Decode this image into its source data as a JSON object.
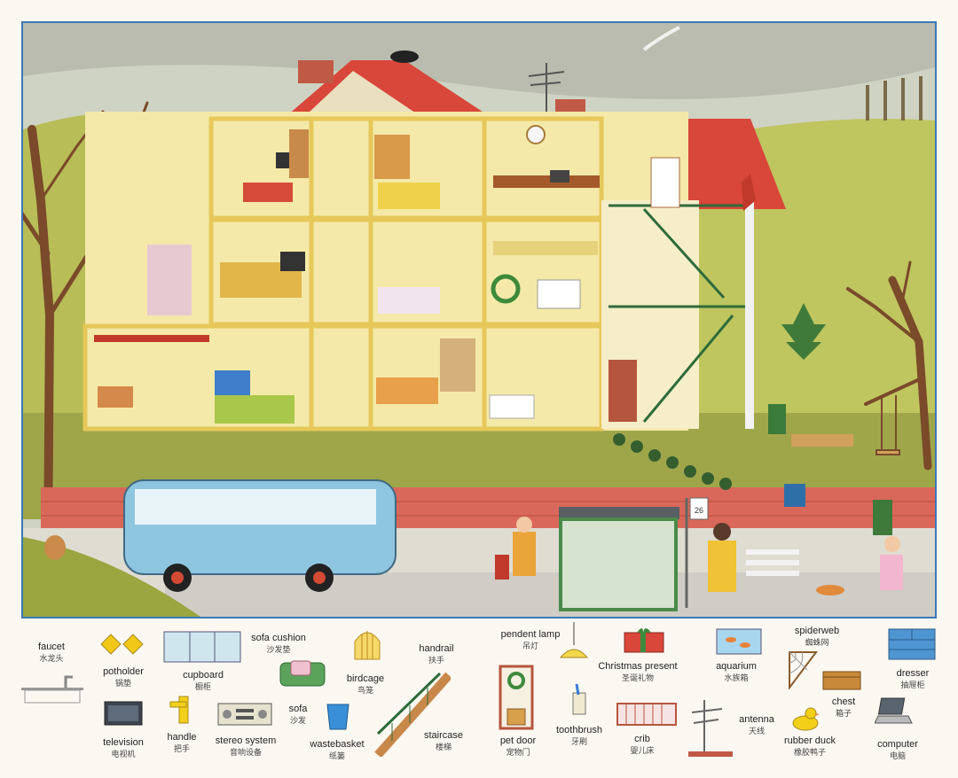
{
  "scene": {
    "bus_stop_sign": "26"
  },
  "vocabulary": {
    "faucet": {
      "en": "faucet",
      "zh": "水龙头"
    },
    "potholder": {
      "en": "potholder",
      "zh": "锅垫"
    },
    "cupboard": {
      "en": "cupboard",
      "zh": "橱柜"
    },
    "sofa_cushion": {
      "en": "sofa cushion",
      "zh": "沙发垫"
    },
    "birdcage": {
      "en": "birdcage",
      "zh": "鸟笼"
    },
    "handrail": {
      "en": "handrail",
      "zh": "扶手"
    },
    "pendent_lamp": {
      "en": "pendent lamp",
      "zh": "吊灯"
    },
    "christmas_present": {
      "en": "Christmas present",
      "zh": "圣诞礼物"
    },
    "aquarium": {
      "en": "aquarium",
      "zh": "水族箱"
    },
    "spiderweb": {
      "en": "spiderweb",
      "zh": "蜘蛛网"
    },
    "dresser": {
      "en": "dresser",
      "zh": "抽屉柜"
    },
    "television": {
      "en": "television",
      "zh": "电视机"
    },
    "handle": {
      "en": "handle",
      "zh": "把手"
    },
    "stereo_system": {
      "en": "stereo system",
      "zh": "音响设备"
    },
    "sofa": {
      "en": "sofa",
      "zh": "沙发"
    },
    "wastebasket": {
      "en": "wastebasket",
      "zh": "纸篓"
    },
    "staircase": {
      "en": "staircase",
      "zh": "楼梯"
    },
    "pet_door": {
      "en": "pet door",
      "zh": "宠物门"
    },
    "toothbrush": {
      "en": "toothbrush",
      "zh": "牙刷"
    },
    "crib": {
      "en": "crib",
      "zh": "婴儿床"
    },
    "antenna": {
      "en": "antenna",
      "zh": "天线"
    },
    "chest": {
      "en": "chest",
      "zh": "箱子"
    },
    "rubber_duck": {
      "en": "rubber duck",
      "zh": "橡胶鸭子"
    },
    "computer": {
      "en": "computer",
      "zh": "电脑"
    }
  },
  "icons": [
    "faucet-icon",
    "potholder-icon",
    "cupboard-icon",
    "sofa-cushion-icon",
    "birdcage-icon",
    "handrail-icon",
    "pendent-lamp-icon",
    "christmas-present-icon",
    "aquarium-icon",
    "spiderweb-icon",
    "dresser-icon",
    "television-icon",
    "handle-icon",
    "stereo-system-icon",
    "sofa-icon",
    "wastebasket-icon",
    "staircase-icon",
    "pet-door-icon",
    "toothbrush-icon",
    "crib-icon",
    "antenna-icon",
    "chest-icon",
    "rubber-duck-icon",
    "computer-icon"
  ],
  "colors": {
    "frame": "#3b78b8",
    "roof": "#d9463a",
    "house_wall": "#f4e9a8",
    "bus": "#8fc6df",
    "brick": "#d9685a",
    "grass": "#b7bf5a",
    "sky": "#cfd3c3"
  }
}
